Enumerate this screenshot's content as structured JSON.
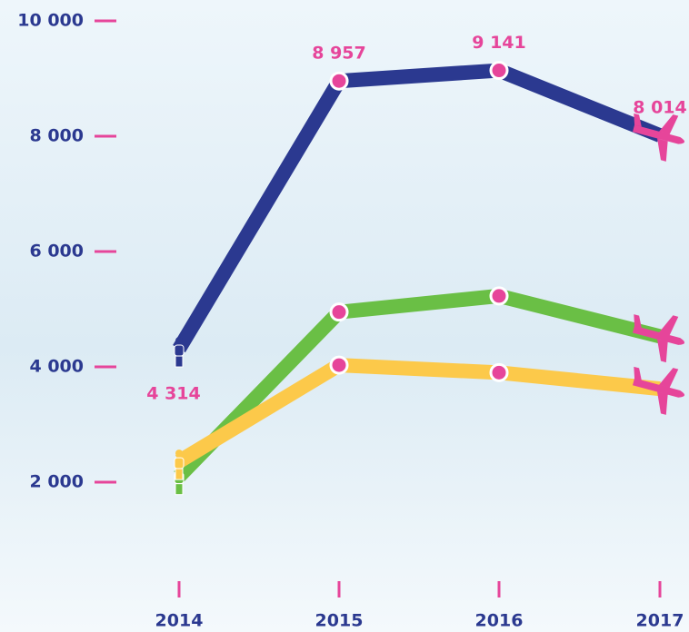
{
  "chart_data": {
    "type": "line",
    "categories": [
      "2014",
      "2015",
      "2016",
      "2017"
    ],
    "series": [
      {
        "color": "#2b3990",
        "values": [
          4314,
          8957,
          9141,
          8014
        ],
        "value_labels": [
          "4 314",
          "8 957",
          "9 141",
          "8 014"
        ]
      },
      {
        "color": "#6abf45",
        "values": [
          2100,
          4950,
          5230,
          4530
        ]
      },
      {
        "color": "#fcc94a",
        "values": [
          2360,
          4030,
          3900,
          3620
        ]
      }
    ],
    "ylim": [
      0,
      10000
    ],
    "yticks": [
      {
        "value": 2000,
        "label": "2 000"
      },
      {
        "value": 4000,
        "label": "4 000"
      },
      {
        "value": 6000,
        "label": "6 000"
      },
      {
        "value": 8000,
        "label": "8 000"
      },
      {
        "value": 10000,
        "label": "10 000"
      }
    ],
    "marker_color": "#e6459a",
    "axis_color": "#2b3990"
  }
}
